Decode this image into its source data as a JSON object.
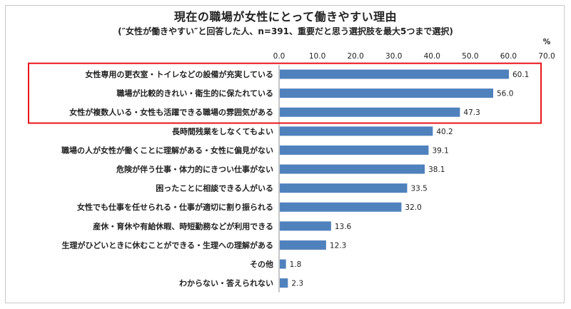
{
  "chart_data": {
    "type": "bar",
    "orientation": "horizontal",
    "title": "現在の職場が女性にとって働きやすい理由",
    "subtitle": "(″女性が働きやすい″と回答した人、n=391、重要だと思う選択肢を最大5つまで選択)",
    "unit": "%",
    "xlim": [
      0,
      70
    ],
    "ticks": [
      "0.0",
      "10.0",
      "20.0",
      "30.0",
      "40.0",
      "50.0",
      "60.0",
      "70.0"
    ],
    "categories": [
      "女性専用の更衣室・トイレなどの設備が充実している",
      "職場が比較的きれい・衛生的に保たれている",
      "女性が複数人いる・女性も活躍できる職場の雰囲気がある",
      "長時間残業をしなくてもよい",
      "職場の人が女性が働くことに理解がある・女性に偏見がない",
      "危険が伴う仕事・体力的にきつい仕事がない",
      "困ったことに相談できる人がいる",
      "女性でも仕事を任せられる・仕事が適切に割り振られる",
      "産休・育休や有給休暇、時短勤務などが利用できる",
      "生理がひどいときに休むことができる・生理への理解がある",
      "その他",
      "わからない・答えられない"
    ],
    "values": [
      60.1,
      56.0,
      47.3,
      40.2,
      39.1,
      38.1,
      33.5,
      32.0,
      13.6,
      12.3,
      1.8,
      2.3
    ],
    "value_labels": [
      "60.1",
      "56.0",
      "47.3",
      "40.2",
      "39.1",
      "38.1",
      "33.5",
      "32.0",
      "13.6",
      "12.3",
      "1.8",
      "2.3"
    ],
    "highlighted_count": 3,
    "bar_color": "#4f81bd",
    "highlight_color": "#e8141b",
    "grid": false
  }
}
